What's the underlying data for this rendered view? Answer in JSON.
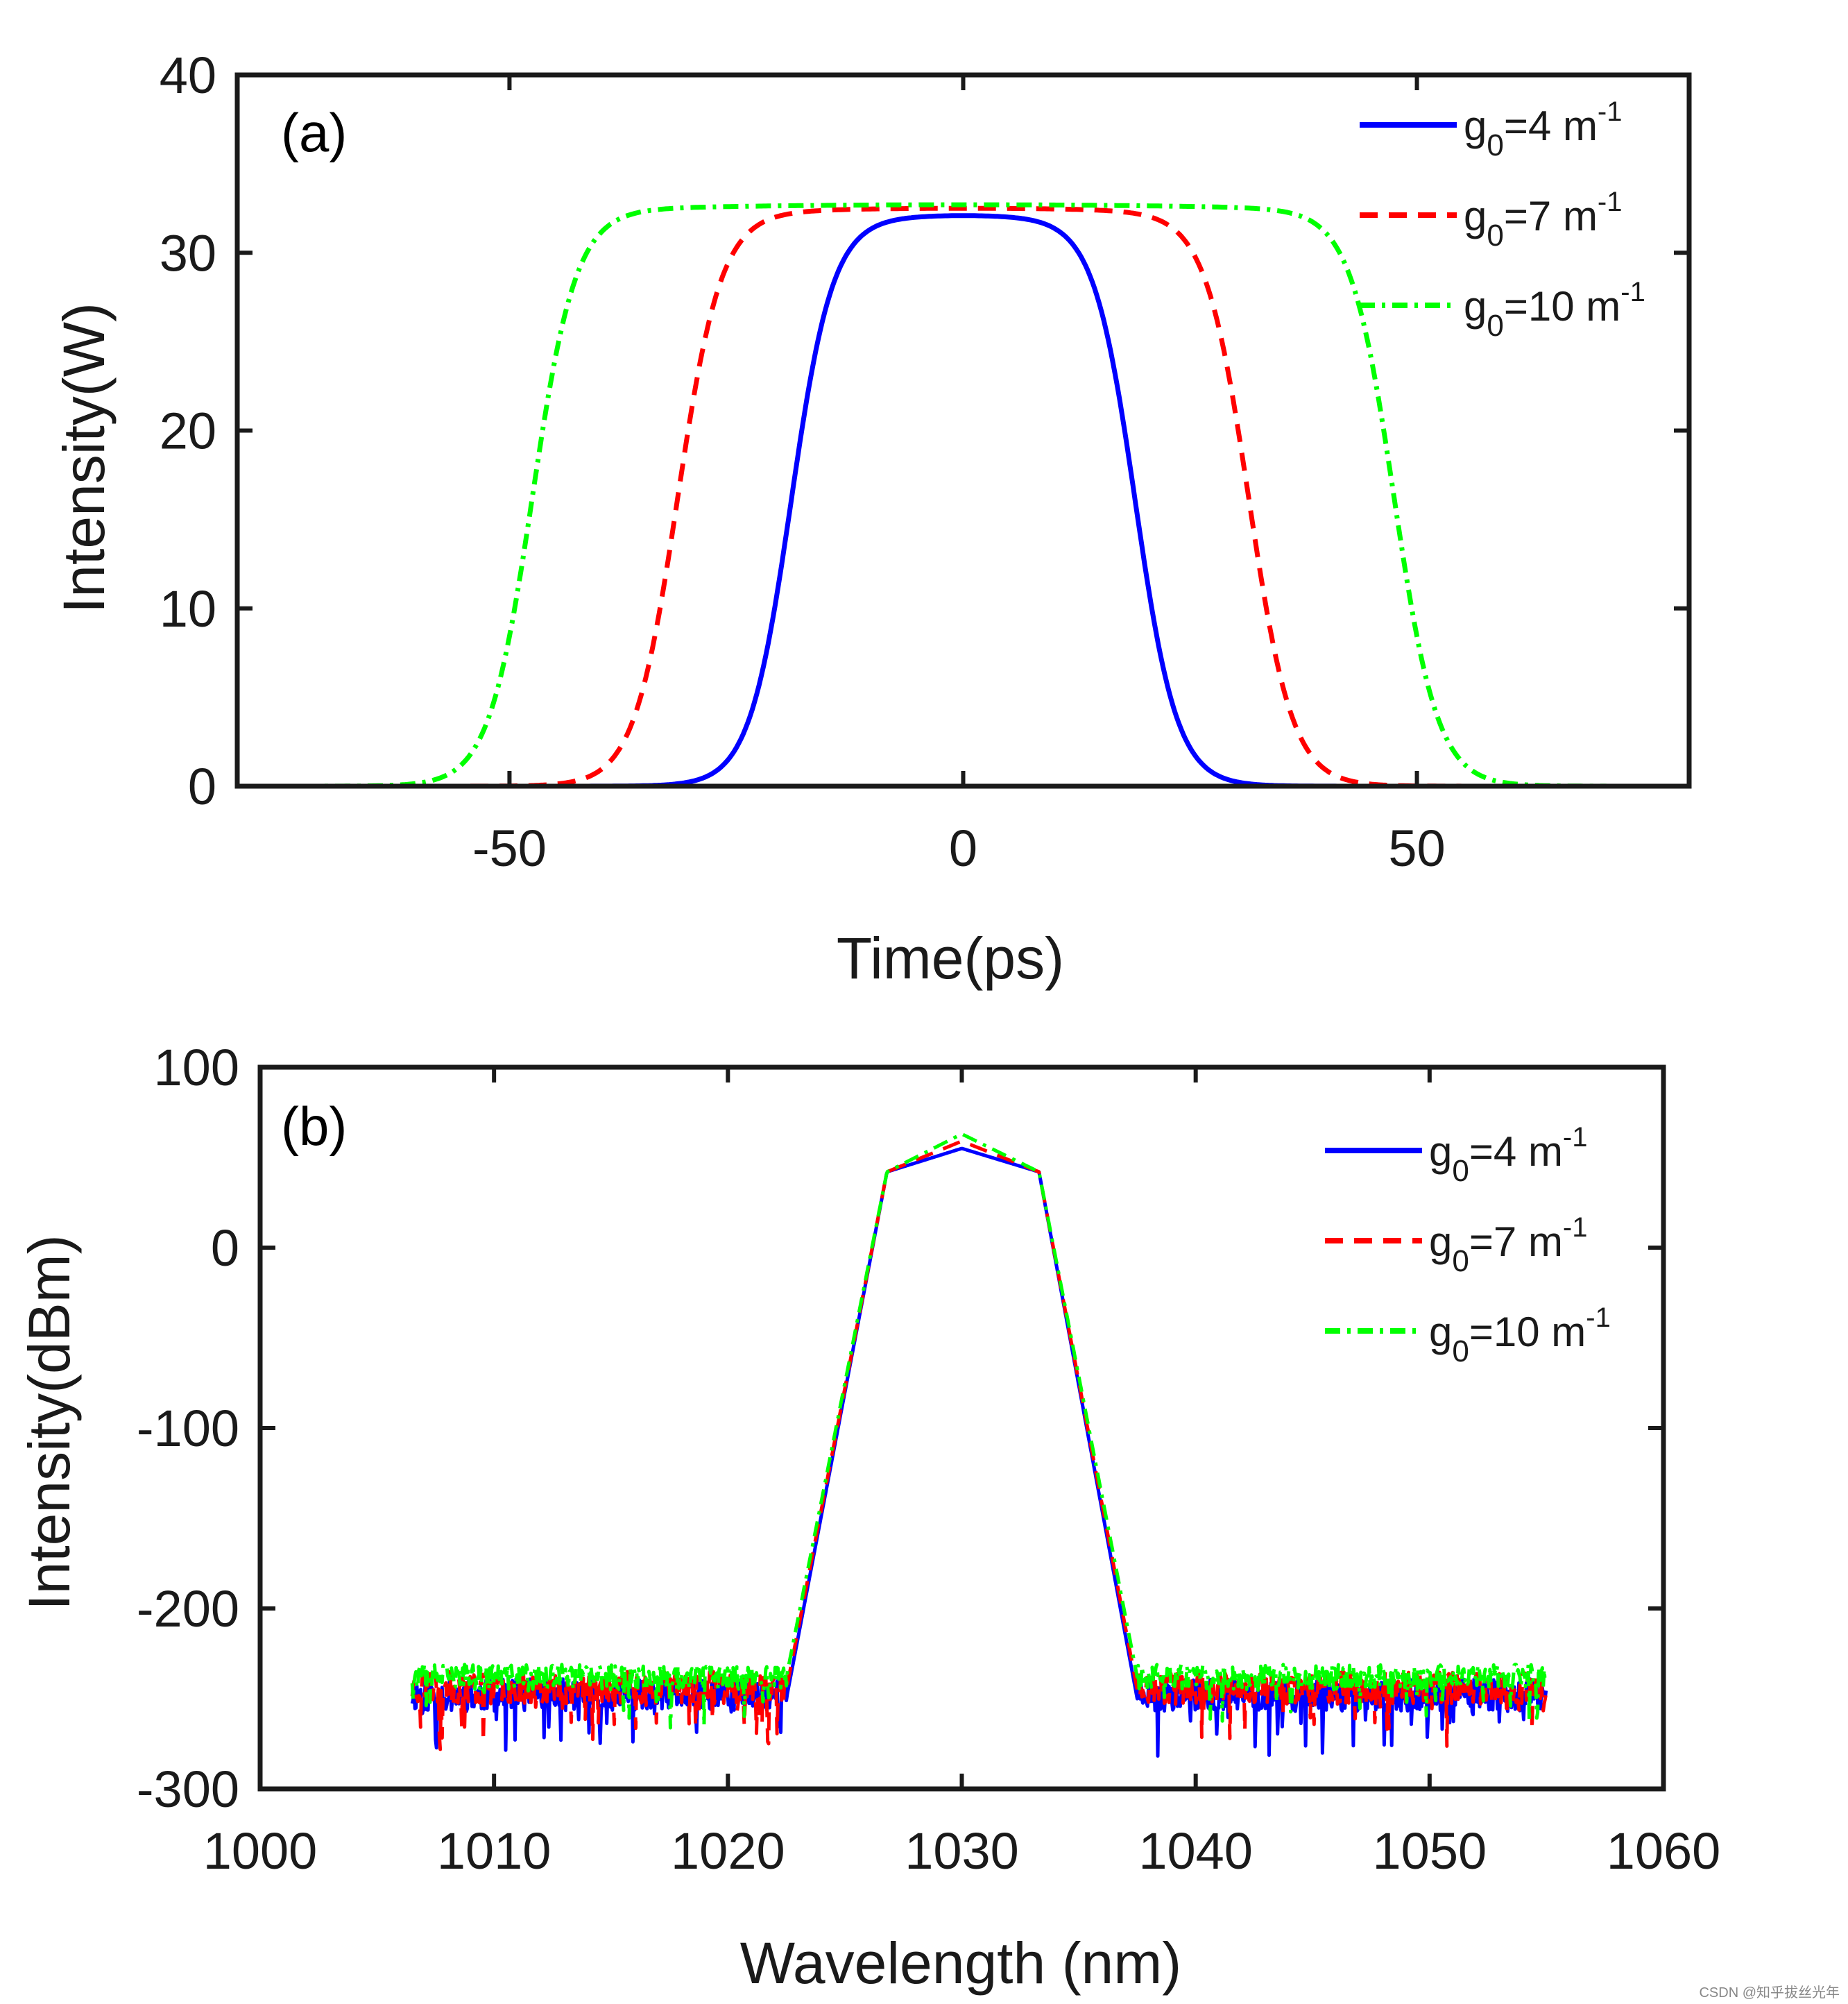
{
  "figure": {
    "watermark": "CSDN @知乎拔丝光年"
  },
  "chart_data": [
    {
      "panel": "(a)",
      "type": "line",
      "xlabel": "Time(ps)",
      "ylabel": "Intensity(W)",
      "xlim": [
        -80,
        80
      ],
      "ylim": [
        0,
        40
      ],
      "xticks": [
        -50,
        0,
        50
      ],
      "yticks": [
        0,
        10,
        20,
        30,
        40
      ],
      "grid": false,
      "legend_position": "top-right",
      "series": [
        {
          "name": "g0=4 m-1",
          "legend": {
            "base": "g",
            "sub": "0",
            "mid": "=4 m",
            "sup": "-1"
          },
          "color": "#0000ff",
          "dash": "solid",
          "shape": {
            "center": 0,
            "half_width": 19,
            "edge_width": 2.3,
            "order": 2,
            "peak": 32.1,
            "flat_peak": 32.1
          }
        },
        {
          "name": "g0=7 m-1",
          "legend": {
            "base": "g",
            "sub": "0",
            "mid": "=7 m",
            "sup": "-1"
          },
          "color": "#ff0000",
          "dash": "dashed",
          "shape": {
            "center": 0,
            "half_width": 31.5,
            "edge_width": 2.4,
            "order": 2,
            "peak": 32.5,
            "flat_peak": 32.5
          }
        },
        {
          "name": "g0=10 m-1",
          "legend": {
            "base": "g",
            "sub": "0",
            "mid": "=10 m",
            "sup": "-1"
          },
          "color": "#00ff00",
          "dash": "dashdot",
          "shape": {
            "center": 0,
            "half_width": 47.5,
            "edge_width": 2.4,
            "order": 2,
            "peak": 32.7,
            "flat_peak": 32.7
          }
        }
      ]
    },
    {
      "panel": "(b)",
      "type": "line",
      "xlabel": "Wavelength (nm)",
      "ylabel": "Intensity(dBm)",
      "xlim": [
        1000,
        1060
      ],
      "ylim": [
        -300,
        100
      ],
      "xticks": [
        1000,
        1010,
        1020,
        1030,
        1040,
        1050,
        1060
      ],
      "yticks": [
        -300,
        -200,
        -100,
        0,
        100
      ],
      "grid": false,
      "legend_position": "top-right",
      "x_range": [
        1006.5,
        1055
      ],
      "series": [
        {
          "name": "g0=4 m-1",
          "legend": {
            "base": "g",
            "sub": "0",
            "mid": "=4 m",
            "sup": "-1"
          },
          "color": "#0000ff",
          "dash": "solid",
          "profile": [
            [
              1022.5,
              -250
            ],
            [
              1026.8,
              42
            ],
            [
              1030,
              55
            ],
            [
              1033.3,
              42
            ],
            [
              1037.5,
              -250
            ]
          ],
          "noise_floor": -248,
          "noise_amp": 9,
          "seed": 11
        },
        {
          "name": "g0=7 m-1",
          "legend": {
            "base": "g",
            "sub": "0",
            "mid": "=7 m",
            "sup": "-1"
          },
          "color": "#ff0000",
          "dash": "dashed",
          "profile": [
            [
              1022.5,
              -245
            ],
            [
              1026.8,
              42
            ],
            [
              1030,
              59
            ],
            [
              1033.3,
              42
            ],
            [
              1037.5,
              -245
            ]
          ],
          "noise_floor": -244,
          "noise_amp": 9,
          "seed": 23
        },
        {
          "name": "g0=10 m-1",
          "legend": {
            "base": "g",
            "sub": "0",
            "mid": "=10 m",
            "sup": "-1"
          },
          "color": "#00ff00",
          "dash": "dashdot",
          "profile": [
            [
              1022.5,
              -238
            ],
            [
              1026.8,
              42
            ],
            [
              1030,
              63
            ],
            [
              1033.3,
              42
            ],
            [
              1037.5,
              -238
            ]
          ],
          "noise_floor": -238,
          "noise_amp": 7,
          "seed": 37
        }
      ]
    }
  ]
}
